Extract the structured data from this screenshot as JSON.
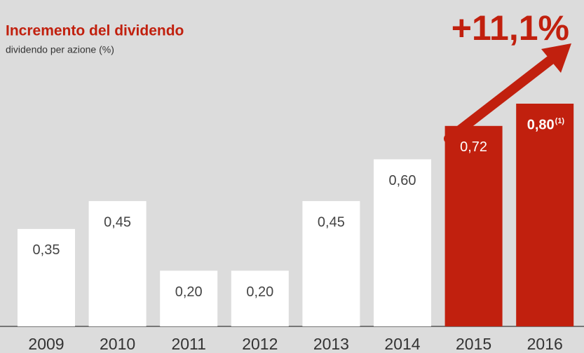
{
  "chart_data": {
    "type": "bar",
    "title": "Incremento del dividendo",
    "subtitle": "dividendo per azione (%)",
    "annotation": "+11,1%",
    "footnote_marker": "(1)",
    "categories": [
      "2009",
      "2010",
      "2011",
      "2012",
      "2013",
      "2014",
      "2015",
      "2016"
    ],
    "values": [
      0.35,
      0.45,
      0.2,
      0.2,
      0.45,
      0.6,
      0.72,
      0.8
    ],
    "value_labels": [
      "0,35",
      "0,45",
      "0,20",
      "0,20",
      "0,45",
      "0,60",
      "0,72",
      "0,80"
    ],
    "colors": [
      "#ffffff",
      "#ffffff",
      "#ffffff",
      "#ffffff",
      "#ffffff",
      "#ffffff",
      "#c1200e",
      "#c1200e"
    ]
  }
}
